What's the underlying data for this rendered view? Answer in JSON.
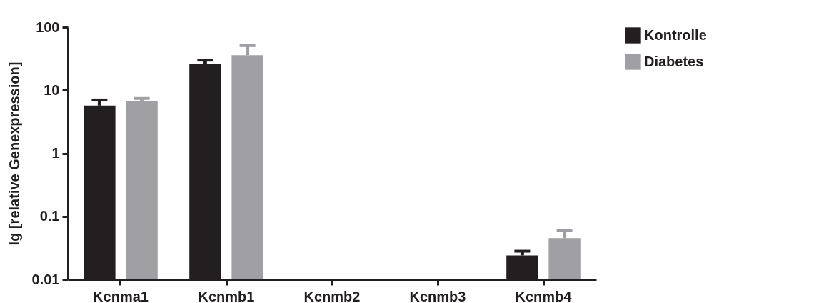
{
  "chart_data": {
    "type": "bar",
    "ylabel": "lg [relative Genexpression]",
    "categories": [
      "Kcnma1",
      "Kcnmb1",
      "Kcnmb2",
      "Kcnmb3",
      "Kcnmb4"
    ],
    "series": [
      {
        "name": "Kontrolle",
        "color": "#231f20",
        "values": [
          5.7,
          26,
          null,
          null,
          0.024
        ],
        "errors": [
          [
            5.7,
            7.0
          ],
          [
            26,
            30
          ],
          null,
          null,
          [
            0.024,
            0.028
          ]
        ]
      },
      {
        "name": "Diabetes",
        "color": "#a0a0a4",
        "values": [
          6.8,
          36,
          null,
          null,
          0.045
        ],
        "errors": [
          [
            6.8,
            7.4
          ],
          [
            36,
            51
          ],
          null,
          null,
          [
            0.045,
            0.059
          ]
        ]
      }
    ],
    "log": true,
    "ylim": [
      0.01,
      100
    ],
    "yticks": [
      0.01,
      0.1,
      1,
      10,
      100
    ],
    "grid": false,
    "legend": "top right"
  }
}
